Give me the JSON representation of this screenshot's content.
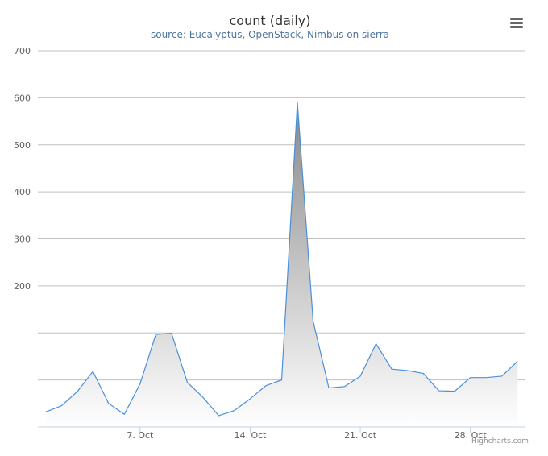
{
  "title": "count (daily)",
  "subtitle": "source: Eucalyptus, OpenStack, Nimbus on sierra",
  "credits": "Highcharts.com",
  "menu_icon": "hamburger-menu-icon",
  "colors": {
    "line": "#4a90d9",
    "area_top": "#888888",
    "area_bottom": "#ffffff",
    "grid": "#c0c0c0",
    "title": "#333333",
    "subtitle": "#4d759e"
  },
  "chart_data": {
    "type": "area",
    "title": "count (daily)",
    "subtitle": "source: Eucalyptus, OpenStack, Nimbus on sierra",
    "x_unit": "day of October",
    "x": [
      1,
      2,
      3,
      4,
      5,
      6,
      7,
      8,
      9,
      10,
      11,
      12,
      13,
      14,
      15,
      16,
      17,
      18,
      19,
      20,
      21,
      22,
      23,
      24,
      25,
      26,
      27,
      28,
      29,
      30,
      31
    ],
    "values": [
      -68,
      -55,
      -25,
      18,
      -50,
      -73,
      -8,
      97,
      99,
      -5,
      -37,
      -76,
      -65,
      -40,
      -12,
      0,
      590,
      125,
      -17,
      -14,
      8,
      77,
      23,
      20,
      14,
      -23,
      -24,
      5,
      5,
      8,
      40
    ],
    "xticks": [
      {
        "x": 7,
        "label": "7. Oct"
      },
      {
        "x": 14,
        "label": "14. Oct"
      },
      {
        "x": 21,
        "label": "21. Oct"
      },
      {
        "x": 28,
        "label": "28. Oct"
      }
    ],
    "yticks": [
      700,
      600,
      500,
      400,
      300,
      200
    ],
    "ylim": [
      -100,
      700
    ],
    "grid": true,
    "legend": false
  }
}
